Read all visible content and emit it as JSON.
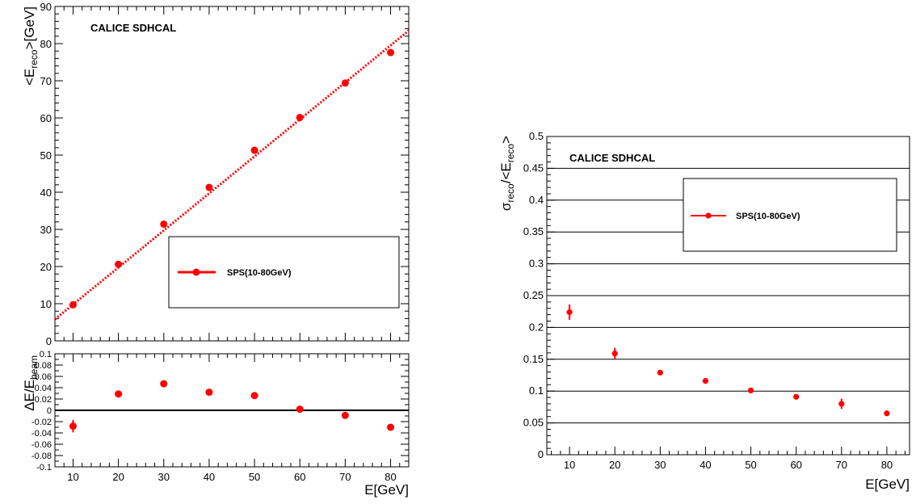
{
  "chart_data": [
    {
      "id": "linearity",
      "type": "scatter",
      "title": "",
      "experiment_label": "CALICE SDHCAL",
      "xlabel": "",
      "ylabel_parts": [
        "<E",
        "reco",
        ">[GeV]"
      ],
      "xlim": [
        6,
        84
      ],
      "ylim": [
        0,
        90
      ],
      "yticks": [
        "0",
        "10",
        "20",
        "30",
        "40",
        "50",
        "60",
        "70",
        "80",
        "90"
      ],
      "grid": false,
      "legend": {
        "placement": "center-right"
      },
      "color": "#ff0000",
      "fit_line": {
        "x": [
          6,
          84
        ],
        "y": [
          5.8,
          83.5
        ],
        "style": "dotted"
      },
      "series": [
        {
          "name": "SPS(10-80GeV)",
          "x": [
            10,
            20,
            30,
            40,
            50,
            60,
            70,
            80
          ],
          "y": [
            9.7,
            20.6,
            31.4,
            41.3,
            51.3,
            60.1,
            69.4,
            77.6
          ]
        }
      ]
    },
    {
      "id": "residuals",
      "type": "scatter",
      "title": "",
      "xlabel": "E[GeV]",
      "ylabel_parts": [
        "ΔE/E",
        "beam"
      ],
      "xlim": [
        6,
        84
      ],
      "ylim": [
        -0.1,
        0.1
      ],
      "xticks": [
        "10",
        "20",
        "30",
        "40",
        "50",
        "60",
        "70",
        "80"
      ],
      "yticks": [
        "-0.1",
        "-0.08",
        "-0.06",
        "-0.04",
        "-0.02",
        "0",
        "0.02",
        "0.04",
        "0.06",
        "0.08",
        "0.1"
      ],
      "grid": false,
      "reference_line": 0,
      "color": "#ff0000",
      "series": [
        {
          "x": [
            10,
            20,
            30,
            40,
            50,
            60,
            70,
            80
          ],
          "y": [
            -0.028,
            0.029,
            0.047,
            0.032,
            0.026,
            0.002,
            -0.009,
            -0.03
          ],
          "err": [
            0.011,
            0.003,
            0.003,
            0.002,
            0.002,
            0.002,
            0.002,
            0.002
          ]
        }
      ]
    },
    {
      "id": "resolution",
      "type": "scatter",
      "title": "",
      "experiment_label": "CALICE SDHCAL",
      "xlabel": "E[GeV]",
      "ylabel_parts": [
        "σ",
        "reco",
        "/<E",
        "reco",
        ">"
      ],
      "xlim": [
        5,
        85
      ],
      "ylim": [
        0,
        0.5
      ],
      "xticks": [
        "10",
        "20",
        "30",
        "40",
        "50",
        "60",
        "70",
        "80"
      ],
      "yticks": [
        "0",
        "0.05",
        "0.1",
        "0.15",
        "0.2",
        "0.25",
        "0.3",
        "0.35",
        "0.4",
        "0.45",
        "0.5"
      ],
      "grid": true,
      "legend": {
        "placement": "top-right"
      },
      "color": "#ff0000",
      "series": [
        {
          "name": "SPS(10-80GeV)",
          "x": [
            10,
            20,
            30,
            40,
            50,
            60,
            70,
            80
          ],
          "y": [
            0.224,
            0.159,
            0.129,
            0.116,
            0.101,
            0.091,
            0.08,
            0.065
          ],
          "err": [
            0.012,
            0.009,
            0.002,
            0.002,
            0.002,
            0.002,
            0.008,
            0.002
          ]
        }
      ]
    }
  ]
}
